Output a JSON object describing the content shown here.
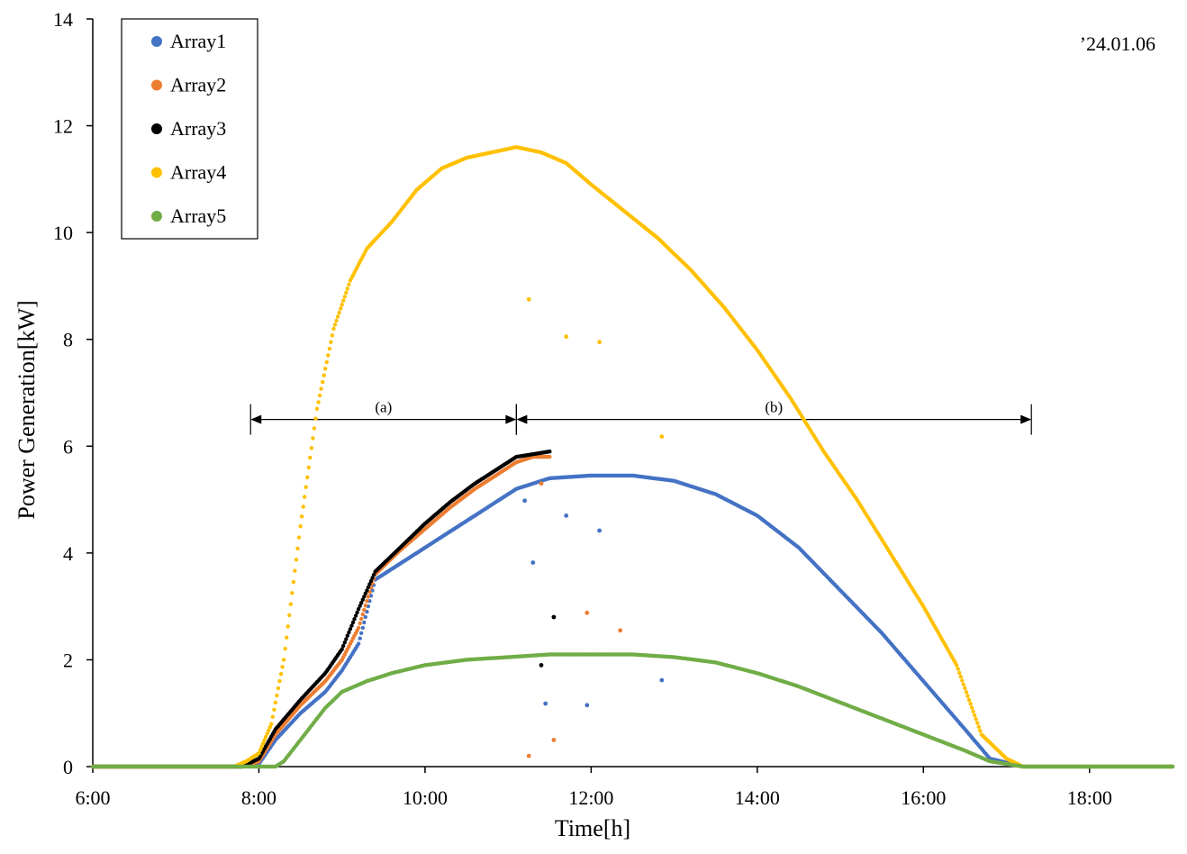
{
  "chart_data": {
    "type": "scatter",
    "xlabel": "Time[h]",
    "ylabel": "Power Generation[kW]",
    "xlim": [
      6,
      19
    ],
    "ylim": [
      0,
      14
    ],
    "x_ticks": [
      6,
      8,
      10,
      12,
      14,
      16,
      18
    ],
    "x_tick_labels": [
      "6:00",
      "8:00",
      "10:00",
      "12:00",
      "14:00",
      "16:00",
      "18:00"
    ],
    "y_ticks": [
      0,
      2,
      4,
      6,
      8,
      10,
      12,
      14
    ],
    "y_tick_labels": [
      "0",
      "2",
      "4",
      "6",
      "8",
      "10",
      "12",
      "14"
    ],
    "grid": false,
    "legend_position": "top-left",
    "annotation_date": "’24.01.06",
    "periods": [
      {
        "label": "(a)",
        "start": 7.9,
        "end": 11.1,
        "y": 6.5
      },
      {
        "label": "(b)",
        "start": 11.1,
        "end": 17.3,
        "y": 6.5
      }
    ],
    "series": [
      {
        "name": "Array1",
        "color": "#4472C4",
        "x": [
          6.0,
          7.8,
          8.0,
          8.2,
          8.5,
          8.8,
          9.0,
          9.2,
          9.4,
          9.7,
          10.0,
          10.3,
          10.6,
          10.9,
          11.1,
          11.5,
          12.0,
          12.5,
          13.0,
          13.5,
          14.0,
          14.5,
          15.0,
          15.5,
          16.0,
          16.5,
          16.8,
          17.2,
          19.0
        ],
        "y": [
          0.0,
          0.0,
          0.05,
          0.5,
          1.0,
          1.4,
          1.8,
          2.3,
          3.5,
          3.8,
          4.1,
          4.4,
          4.7,
          5.0,
          5.2,
          5.4,
          5.45,
          5.45,
          5.35,
          5.1,
          4.7,
          4.1,
          3.3,
          2.5,
          1.6,
          0.7,
          0.15,
          0.0,
          0.0
        ],
        "outliers": [
          [
            11.2,
            4.98
          ],
          [
            11.3,
            3.82
          ],
          [
            11.45,
            1.18
          ],
          [
            11.7,
            4.7
          ],
          [
            11.95,
            1.15
          ],
          [
            12.1,
            4.42
          ],
          [
            12.85,
            1.62
          ]
        ]
      },
      {
        "name": "Array2",
        "color": "#ED7D31",
        "x": [
          6.0,
          7.8,
          8.0,
          8.2,
          8.5,
          8.8,
          9.0,
          9.2,
          9.4,
          9.7,
          10.0,
          10.3,
          10.6,
          10.9,
          11.1,
          11.3,
          11.5
        ],
        "y": [
          0.0,
          0.0,
          0.1,
          0.6,
          1.15,
          1.6,
          2.0,
          2.6,
          3.6,
          4.05,
          4.45,
          4.85,
          5.2,
          5.5,
          5.7,
          5.8,
          5.8
        ],
        "outliers": [
          [
            11.25,
            0.2
          ],
          [
            11.4,
            5.3
          ],
          [
            11.55,
            0.5
          ],
          [
            11.95,
            2.88
          ],
          [
            12.35,
            2.55
          ]
        ]
      },
      {
        "name": "Array3",
        "color": "#000000",
        "x": [
          6.0,
          7.8,
          8.0,
          8.2,
          8.5,
          8.8,
          9.0,
          9.2,
          9.4,
          9.7,
          10.0,
          10.3,
          10.6,
          10.9,
          11.1,
          11.3,
          11.5
        ],
        "y": [
          0.0,
          0.0,
          0.15,
          0.7,
          1.25,
          1.75,
          2.2,
          2.95,
          3.65,
          4.1,
          4.55,
          4.95,
          5.3,
          5.6,
          5.8,
          5.85,
          5.9
        ],
        "outliers": [
          [
            11.4,
            1.9
          ],
          [
            11.55,
            2.8
          ]
        ]
      },
      {
        "name": "Array4",
        "color": "#FFC000",
        "x": [
          6.0,
          7.7,
          7.85,
          8.0,
          8.15,
          8.3,
          8.5,
          8.7,
          8.9,
          9.1,
          9.3,
          9.6,
          9.9,
          10.2,
          10.5,
          10.8,
          11.1,
          11.4,
          11.7,
          12.0,
          12.4,
          12.8,
          13.2,
          13.6,
          14.0,
          14.4,
          14.8,
          15.2,
          15.6,
          16.0,
          16.4,
          16.7,
          17.0,
          17.2,
          19.0
        ],
        "y": [
          0.0,
          0.0,
          0.1,
          0.25,
          0.8,
          2.0,
          4.5,
          6.7,
          8.2,
          9.1,
          9.7,
          10.2,
          10.8,
          11.2,
          11.4,
          11.5,
          11.6,
          11.5,
          11.3,
          10.9,
          10.4,
          9.9,
          9.3,
          8.6,
          7.8,
          6.9,
          5.9,
          5.0,
          4.0,
          3.0,
          1.9,
          0.6,
          0.15,
          0.0,
          0.0
        ],
        "outliers": [
          [
            11.25,
            8.75
          ],
          [
            11.7,
            8.05
          ],
          [
            12.1,
            7.95
          ],
          [
            12.85,
            6.18
          ]
        ]
      },
      {
        "name": "Array5",
        "color": "#70AD47",
        "x": [
          6.0,
          8.2,
          8.3,
          8.5,
          8.8,
          9.0,
          9.3,
          9.6,
          10.0,
          10.5,
          11.0,
          11.5,
          12.0,
          12.5,
          13.0,
          13.5,
          14.0,
          14.5,
          15.0,
          15.5,
          16.0,
          16.5,
          16.8,
          17.2,
          19.0
        ],
        "y": [
          0.0,
          0.0,
          0.1,
          0.5,
          1.1,
          1.4,
          1.6,
          1.75,
          1.9,
          2.0,
          2.05,
          2.1,
          2.1,
          2.1,
          2.05,
          1.95,
          1.75,
          1.5,
          1.2,
          0.9,
          0.6,
          0.3,
          0.1,
          0.0,
          0.0
        ],
        "outliers": []
      }
    ]
  }
}
